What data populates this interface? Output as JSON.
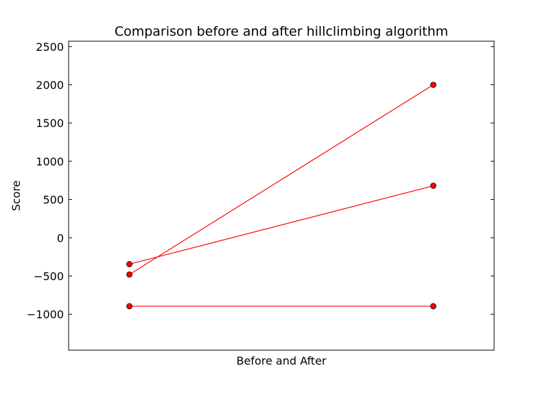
{
  "chart_data": {
    "type": "line",
    "title": "Comparison before and after hillclimbing algorithm",
    "xlabel": "Before and After",
    "ylabel": "Score",
    "x": [
      0,
      1
    ],
    "xlim": [
      -0.2,
      1.2
    ],
    "ylim": [
      -1470,
      2570
    ],
    "yticks": [
      -1000,
      -500,
      0,
      500,
      1000,
      1500,
      2000,
      2500
    ],
    "ytick_labels": [
      "−1000",
      "−500",
      "0",
      "500",
      "1000",
      "1500",
      "2000",
      "2500"
    ],
    "series": [
      {
        "values": [
          -480,
          2000
        ]
      },
      {
        "values": [
          -345,
          680
        ]
      },
      {
        "values": [
          -895,
          -895
        ]
      }
    ],
    "grid": false,
    "colors": {
      "line": "#ff0000",
      "marker_fill": "#ff0000",
      "marker_edge": "#000000",
      "axes": "#000000"
    }
  }
}
